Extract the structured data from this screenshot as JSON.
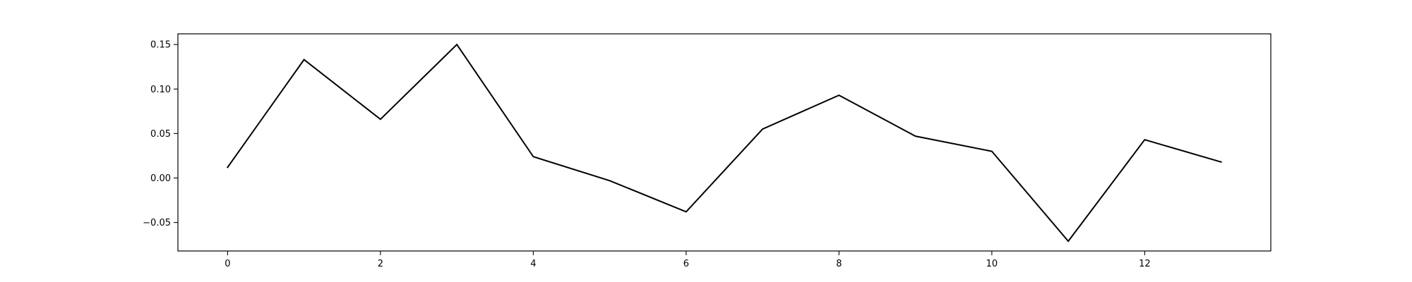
{
  "chart_data": {
    "type": "line",
    "title": "",
    "xlabel": "",
    "ylabel": "",
    "xlim": [
      -0.65,
      13.65
    ],
    "ylim": [
      -0.082,
      0.162
    ],
    "grid": false,
    "legend": "none",
    "x_ticks": [
      0,
      2,
      4,
      6,
      8,
      10,
      12
    ],
    "x_tick_labels": [
      "0",
      "2",
      "4",
      "6",
      "8",
      "10",
      "12"
    ],
    "y_ticks": [
      -0.05,
      0.0,
      0.05,
      0.1,
      0.15
    ],
    "y_tick_labels": [
      "−0.05",
      "0.00",
      "0.05",
      "0.10",
      "0.15"
    ],
    "series": [
      {
        "color": "#000000",
        "x": [
          0,
          1,
          2,
          3,
          4,
          5,
          6,
          7,
          8,
          9,
          10,
          11,
          12,
          13
        ],
        "values": [
          0.012,
          0.133,
          0.066,
          0.15,
          0.024,
          -0.003,
          -0.038,
          0.055,
          0.093,
          0.047,
          0.03,
          -0.071,
          0.043,
          0.018
        ]
      }
    ]
  }
}
